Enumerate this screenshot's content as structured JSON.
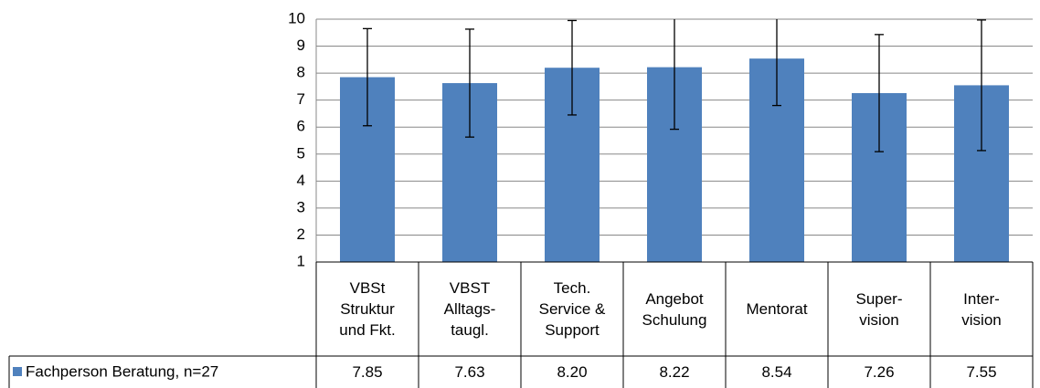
{
  "chart_data": {
    "type": "bar",
    "categories": [
      "VBSt\nStruktur\nund Fkt.",
      "VBST\nAlltags-\ntaugl.",
      "Tech.\nService &\nSupport",
      "Angebot\nSchulung",
      "Mentorat",
      "Super-\nvision",
      "Inter-\nvision"
    ],
    "series": [
      {
        "name": "Fachperson Beratung, n=27",
        "color": "#4f81bd",
        "values": [
          7.85,
          7.63,
          8.2,
          8.22,
          8.54,
          7.26,
          7.55
        ],
        "value_labels": [
          "7.85",
          "7.63",
          "8.20",
          "8.22",
          "8.54",
          "7.26",
          "7.55"
        ],
        "errors": [
          1.8,
          2.0,
          1.75,
          2.3,
          1.74,
          2.17,
          2.42
        ]
      }
    ],
    "ylim": [
      1,
      10
    ],
    "yticks": [
      1,
      2,
      3,
      4,
      5,
      6,
      7,
      8,
      9,
      10
    ],
    "grid": true
  }
}
